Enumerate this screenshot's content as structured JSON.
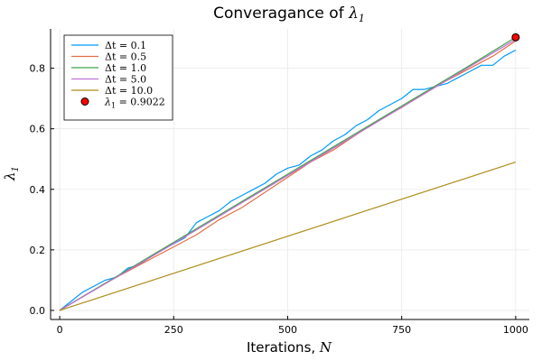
{
  "chart_data": {
    "type": "line",
    "title": "Converagance of λ₁",
    "title_prefix": "Converagance of ",
    "title_math": "λ",
    "title_math_sub": "1",
    "xlabel": "Iterations, N",
    "xlabel_prefix": "Iterations, ",
    "xlabel_math": "N",
    "ylabel": "λ₁",
    "ylabel_math": "λ",
    "ylabel_math_sub": "1",
    "xlim": [
      -20,
      1030
    ],
    "ylim": [
      -0.03,
      0.93
    ],
    "xticks": [
      0,
      250,
      500,
      750,
      1000
    ],
    "xtick_labels": [
      "0",
      "250",
      "500",
      "750",
      "1000"
    ],
    "yticks": [
      0.0,
      0.2,
      0.4,
      0.6,
      0.8
    ],
    "ytick_labels": [
      "0.0",
      "0.2",
      "0.4",
      "0.6",
      "0.8"
    ],
    "grid": true,
    "legend_position": "top-left",
    "series": [
      {
        "name": "Δt = 0.1",
        "color": "#009AFA",
        "x": [
          0,
          25,
          50,
          75,
          100,
          125,
          150,
          175,
          200,
          225,
          250,
          275,
          300,
          325,
          350,
          375,
          400,
          425,
          450,
          475,
          500,
          525,
          550,
          575,
          600,
          625,
          650,
          675,
          700,
          725,
          750,
          775,
          800,
          825,
          850,
          875,
          900,
          925,
          950,
          975,
          1000
        ],
        "y": [
          0.0,
          0.03,
          0.06,
          0.08,
          0.1,
          0.11,
          0.14,
          0.15,
          0.18,
          0.2,
          0.22,
          0.24,
          0.29,
          0.31,
          0.33,
          0.36,
          0.38,
          0.4,
          0.42,
          0.45,
          0.47,
          0.48,
          0.51,
          0.53,
          0.56,
          0.58,
          0.61,
          0.63,
          0.66,
          0.68,
          0.7,
          0.73,
          0.73,
          0.74,
          0.75,
          0.77,
          0.79,
          0.81,
          0.81,
          0.84,
          0.86
        ]
      },
      {
        "name": "Δt = 0.5",
        "color": "#E26F46",
        "x": [
          0,
          50,
          100,
          150,
          200,
          250,
          300,
          350,
          400,
          450,
          500,
          550,
          600,
          650,
          700,
          750,
          800,
          850,
          900,
          950,
          1000
        ],
        "y": [
          0.0,
          0.045,
          0.09,
          0.13,
          0.17,
          0.21,
          0.25,
          0.3,
          0.34,
          0.39,
          0.44,
          0.49,
          0.53,
          0.58,
          0.63,
          0.67,
          0.72,
          0.76,
          0.8,
          0.84,
          0.89
        ]
      },
      {
        "name": "Δt = 1.0",
        "color": "#3DA44D",
        "x": [
          0,
          100,
          200,
          300,
          400,
          500,
          600,
          700,
          800,
          900,
          1000
        ],
        "y": [
          0.0,
          0.09,
          0.18,
          0.27,
          0.36,
          0.45,
          0.54,
          0.63,
          0.72,
          0.81,
          0.9022
        ]
      },
      {
        "name": "Δt = 5.0",
        "color": "#C271D2",
        "x": [
          0,
          100,
          200,
          300,
          400,
          500,
          600,
          700,
          800,
          900,
          1000
        ],
        "y": [
          0.0,
          0.088,
          0.176,
          0.266,
          0.356,
          0.446,
          0.536,
          0.626,
          0.716,
          0.806,
          0.895
        ]
      },
      {
        "name": "Δt = 10.0",
        "color": "#AC8D18",
        "x": [
          0,
          1000
        ],
        "y": [
          0.0,
          0.49
        ]
      }
    ],
    "marker": {
      "name": "λ₁ = 0.9022",
      "label_math": "λ",
      "label_math_sub": "1",
      "label_value": " = 0.9022",
      "x": 1000,
      "y": 0.9022,
      "color": "#FF0000"
    }
  }
}
